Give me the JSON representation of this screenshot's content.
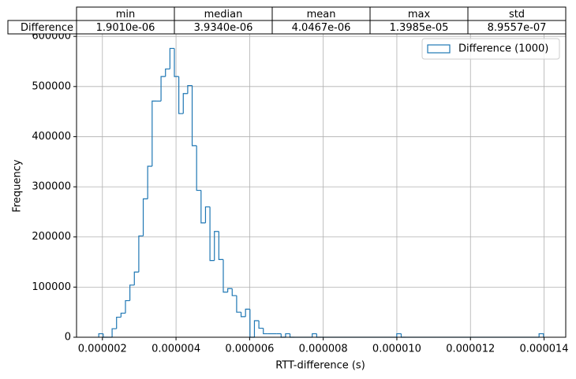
{
  "table": {
    "columns": [
      "min",
      "median",
      "mean",
      "max",
      "std"
    ],
    "rows": [
      {
        "label": "Difference",
        "cells": [
          "1.9010e-06",
          "3.9340e-06",
          "4.0467e-06",
          "1.3985e-05",
          "8.9557e-07"
        ]
      }
    ]
  },
  "chart_data": {
    "type": "histogram",
    "xlabel": "RTT-difference (s)",
    "ylabel": "Frequency",
    "series_name": "Difference (1000)",
    "color": "#1f77b4",
    "legend_loc": "upper right",
    "grid": true,
    "bins": [
      1.901e-06,
      2.02184e-06,
      2.14268e-06,
      2.26352e-06,
      2.38436e-06,
      2.5052e-06,
      2.62604e-06,
      2.74688e-06,
      2.86772e-06,
      2.98856e-06,
      3.1094e-06,
      3.23024e-06,
      3.35108e-06,
      3.47192e-06,
      3.59276e-06,
      3.7136e-06,
      3.83444e-06,
      3.95528e-06,
      4.07612e-06,
      4.19696e-06,
      4.3178e-06,
      4.43864e-06,
      4.55948e-06,
      4.68032e-06,
      4.80116e-06,
      4.922e-06,
      5.04284e-06,
      5.16368e-06,
      5.28452e-06,
      5.40536e-06,
      5.5262e-06,
      5.64704e-06,
      5.76788e-06,
      5.88872e-06,
      6.00956e-06,
      6.1304e-06,
      6.25124e-06,
      6.37208e-06,
      6.49292e-06,
      6.61376e-06,
      6.7346e-06,
      6.85544e-06,
      6.97628e-06,
      7.09712e-06,
      7.21796e-06,
      7.3388e-06,
      7.45964e-06,
      7.58048e-06,
      7.70132e-06,
      7.82216e-06,
      7.943e-06,
      8.06384e-06,
      8.18468e-06,
      8.30552e-06,
      8.42636e-06,
      8.5472e-06,
      8.66804e-06,
      8.78888e-06,
      8.90972e-06,
      9.03056e-06,
      9.1514e-06,
      9.27224e-06,
      9.39308e-06,
      9.51392e-06,
      9.63476e-06,
      9.7556e-06,
      9.87644e-06,
      9.99728e-06,
      1.011812e-05,
      1.023896e-05,
      1.03598e-05,
      1.048064e-05,
      1.060148e-05,
      1.072232e-05,
      1.084316e-05,
      1.0964e-05,
      1.108484e-05,
      1.120568e-05,
      1.132652e-05,
      1.144736e-05,
      1.15682e-05,
      1.168904e-05,
      1.180988e-05,
      1.193072e-05,
      1.205156e-05,
      1.21724e-05,
      1.229324e-05,
      1.241408e-05,
      1.253492e-05,
      1.265576e-05,
      1.27766e-05,
      1.289744e-05,
      1.301828e-05,
      1.313912e-05,
      1.325996e-05,
      1.33808e-05,
      1.350164e-05,
      1.362248e-05,
      1.374332e-05,
      1.386416e-05,
      1.3985e-05
    ],
    "counts": [
      7000,
      0,
      0,
      17000,
      40000,
      48000,
      73000,
      104000,
      130000,
      202000,
      276000,
      341000,
      471000,
      471000,
      520000,
      535000,
      576000,
      520000,
      446000,
      486000,
      502000,
      382000,
      293000,
      228000,
      260000,
      153000,
      211000,
      155000,
      90000,
      97000,
      83000,
      50000,
      41000,
      56000,
      0,
      33000,
      18000,
      7000,
      7000,
      7000,
      7000,
      0,
      7000,
      0,
      0,
      0,
      0,
      0,
      7000,
      0,
      0,
      0,
      0,
      0,
      0,
      0,
      0,
      0,
      0,
      0,
      0,
      0,
      0,
      0,
      0,
      0,
      0,
      7000,
      0,
      0,
      0,
      0,
      0,
      0,
      0,
      0,
      0,
      0,
      0,
      0,
      0,
      0,
      0,
      0,
      0,
      0,
      0,
      0,
      0,
      0,
      0,
      0,
      0,
      0,
      0,
      0,
      0,
      0,
      0,
      7000
    ],
    "xlim": [
      1.297e-06,
      1.4589e-05
    ],
    "xticks": [
      {
        "value": 2e-06,
        "label": "0.000002"
      },
      {
        "value": 4e-06,
        "label": "0.000004"
      },
      {
        "value": 6e-06,
        "label": "0.000006"
      },
      {
        "value": 8e-06,
        "label": "0.000008"
      },
      {
        "value": 1e-05,
        "label": "0.000010"
      },
      {
        "value": 1.2e-05,
        "label": "0.000012"
      },
      {
        "value": 1.4e-05,
        "label": "0.000014"
      }
    ],
    "ylim": [
      0,
      605000
    ],
    "yticks": [
      0,
      100000,
      200000,
      300000,
      400000,
      500000,
      600000
    ]
  }
}
